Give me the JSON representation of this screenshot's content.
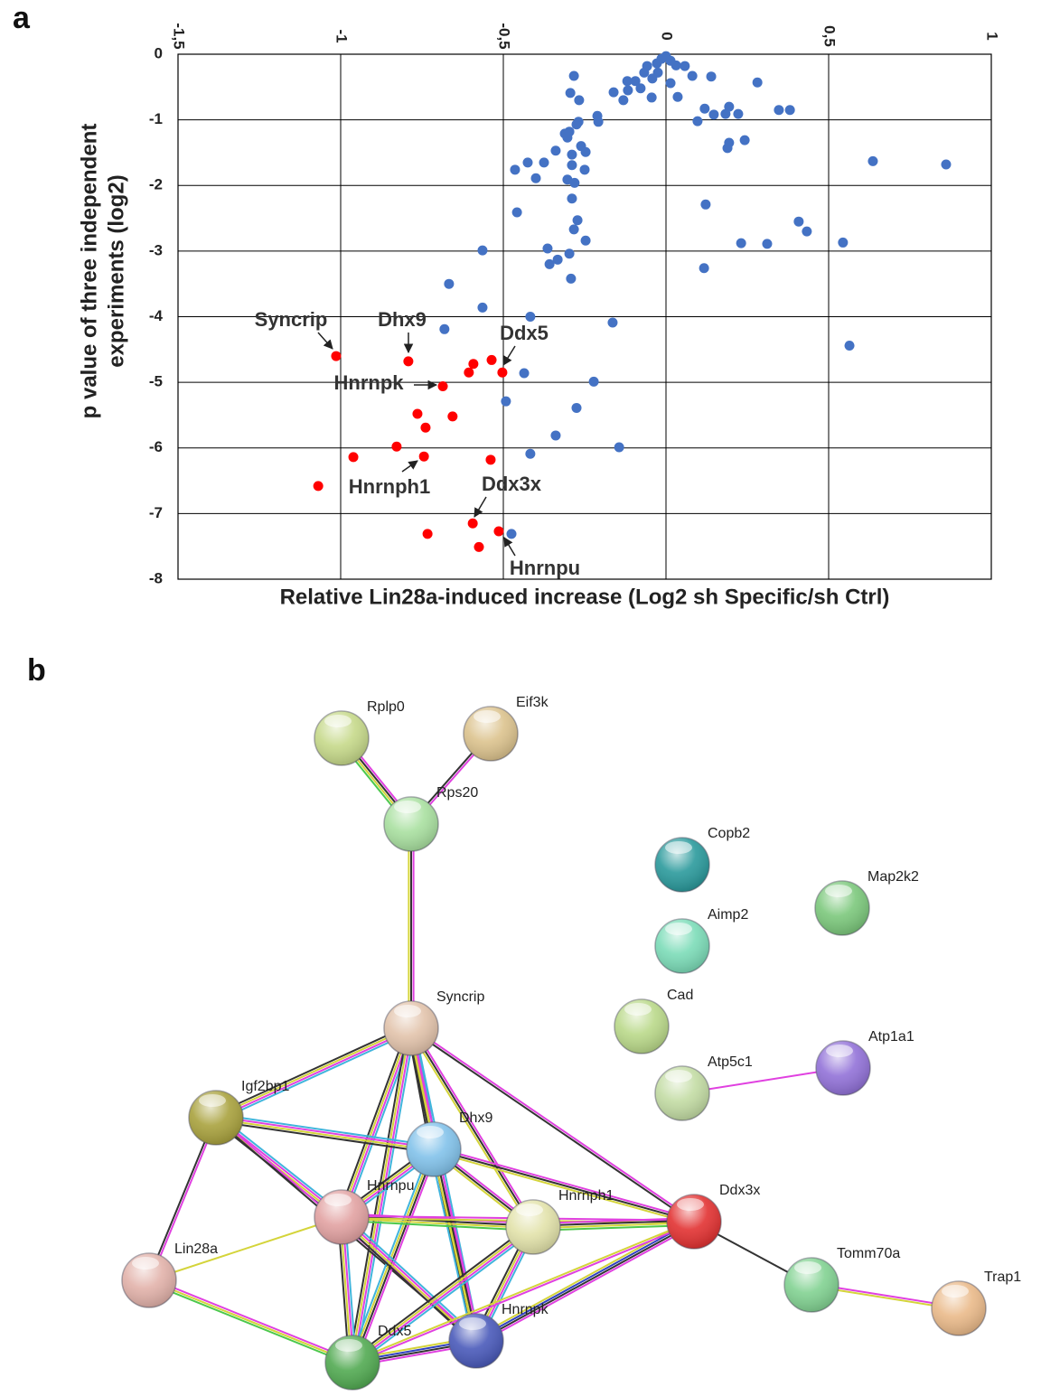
{
  "panel_labels": [
    "a",
    "b"
  ],
  "chart_data": {
    "type": "scatter",
    "xlabel": "Relative Lin28a-induced increase (Log2 sh Specific/sh Ctrl)",
    "ylabel": [
      "p value of three independent",
      "experiments (log2)"
    ],
    "xlim": [
      -1.5,
      1
    ],
    "ylim": [
      -8,
      0
    ],
    "xticks": [
      {
        "value": -1.5,
        "label": "-1,5"
      },
      -1,
      {
        "value": -0.5,
        "label": "-0,5"
      },
      0,
      {
        "value": 0.5,
        "label": "0,5"
      },
      1
    ],
    "yticks": [
      0,
      -1,
      -2,
      -3,
      -4,
      -5,
      -6,
      -7,
      -8
    ],
    "grid": true,
    "series": [
      {
        "color": "#4472c4",
        "x": [
          0,
          -0.014,
          0.014,
          -0.028,
          0.031,
          -0.058,
          0.058,
          -0.067,
          -0.025,
          0.081,
          0.139,
          -0.283,
          -0.042,
          -0.119,
          -0.094,
          0.014,
          0.281,
          -0.161,
          -0.117,
          -0.294,
          -0.078,
          -0.044,
          0.036,
          -0.267,
          -0.131,
          0.119,
          0.194,
          0.183,
          0.381,
          0.347,
          0.222,
          0.147,
          -0.211,
          -0.208,
          -0.269,
          -0.275,
          0.097,
          -0.311,
          -0.303,
          -0.297,
          0.194,
          0.189,
          0.242,
          -0.261,
          -0.339,
          -0.247,
          -0.289,
          -0.425,
          -0.464,
          -0.375,
          -0.4,
          -0.25,
          -0.289,
          0.636,
          0.861,
          -0.303,
          -0.281,
          -0.289,
          0.122,
          -0.458,
          -0.272,
          -0.283,
          -0.247,
          0.408,
          0.433,
          0.231,
          0.311,
          0.544,
          -0.364,
          -0.297,
          -0.333,
          -0.358,
          -0.292,
          -0.564,
          0.117,
          -0.667,
          -0.564,
          0.564,
          -0.417,
          -0.164,
          -0.681,
          -0.436,
          -0.222,
          -0.492,
          -0.275,
          -0.339,
          -0.144,
          -0.417,
          -0.475
        ],
        "values": [
          -0.03,
          -0.07,
          -0.1,
          -0.14,
          -0.17,
          -0.18,
          -0.18,
          -0.28,
          -0.28,
          -0.33,
          -0.34,
          -0.33,
          -0.37,
          -0.41,
          -0.41,
          -0.44,
          -0.43,
          -0.58,
          -0.55,
          -0.59,
          -0.52,
          -0.66,
          -0.65,
          -0.7,
          -0.7,
          -0.83,
          -0.8,
          -0.91,
          -0.85,
          -0.85,
          -0.91,
          -0.92,
          -0.94,
          -1.03,
          -1.03,
          -1.07,
          -1.02,
          -1.21,
          -1.27,
          -1.18,
          -1.35,
          -1.43,
          -1.31,
          -1.4,
          -1.47,
          -1.49,
          -1.53,
          -1.65,
          -1.76,
          -1.65,
          -1.89,
          -1.76,
          -1.69,
          -1.63,
          -1.68,
          -1.91,
          -1.96,
          -2.2,
          -2.29,
          -2.41,
          -2.53,
          -2.67,
          -2.84,
          -2.55,
          -2.7,
          -2.88,
          -2.89,
          -2.87,
          -2.96,
          -3.04,
          -3.13,
          -3.2,
          -3.42,
          -2.99,
          -3.26,
          -3.5,
          -3.86,
          -4.44,
          -4.0,
          -4.09,
          -4.19,
          -4.86,
          -4.99,
          -5.29,
          -5.39,
          -5.81,
          -5.99,
          -6.09,
          -7.31
        ]
      },
      {
        "color": "#ff0000",
        "x": [
          -1.014,
          -0.792,
          -0.536,
          -0.592,
          -0.503,
          -0.606,
          -0.686,
          -0.764,
          -0.656,
          -0.739,
          -0.828,
          -0.744,
          -0.961,
          -0.539,
          -1.069,
          -0.594,
          -0.514,
          -0.733,
          -0.575
        ],
        "values": [
          -4.6,
          -4.68,
          -4.66,
          -4.72,
          -4.85,
          -4.85,
          -5.06,
          -5.48,
          -5.52,
          -5.69,
          -5.98,
          -6.13,
          -6.14,
          -6.18,
          -6.58,
          -7.15,
          -7.27,
          -7.31,
          -7.51
        ]
      }
    ],
    "annotations": [
      "Syncrip",
      "Dhx9",
      "Ddx5",
      "Hnrnpk",
      "Hnrnph1",
      "Ddx3x",
      "Hnrnpu"
    ]
  },
  "network": {
    "nodes": [
      {
        "label": "Rplp0",
        "color": "#c6d98a"
      },
      {
        "label": "Eif3k",
        "color": "#dcc38e"
      },
      {
        "label": "Rps20",
        "color": "#a9e0a0"
      },
      {
        "label": "Copb2",
        "color": "#2b9a9c"
      },
      {
        "label": "Map2k2",
        "color": "#7cc87c"
      },
      {
        "label": "Aimp2",
        "color": "#7cdcb8"
      },
      {
        "label": "Syncrip",
        "color": "#e2c3ab"
      },
      {
        "label": "Cad",
        "color": "#bad98a"
      },
      {
        "label": "Atp1a1",
        "color": "#9272d8"
      },
      {
        "label": "Atp5c1",
        "color": "#c3dca4"
      },
      {
        "label": "Igf2bp1",
        "color": "#a9a23e"
      },
      {
        "label": "Dhx9",
        "color": "#82c2ea"
      },
      {
        "label": "Hnrnpu",
        "color": "#e2a2a2"
      },
      {
        "label": "Hnrnph1",
        "color": "#e2e2aa"
      },
      {
        "label": "Ddx3x",
        "color": "#e23232"
      },
      {
        "label": "Lin28a",
        "color": "#e2b2aa"
      },
      {
        "label": "Tomm70a",
        "color": "#82d292"
      },
      {
        "label": "Trap1",
        "color": "#eaba8a"
      },
      {
        "label": "Ddx5",
        "color": "#52aa52"
      },
      {
        "label": "Hnrnpk",
        "color": "#4a5aba"
      }
    ]
  }
}
